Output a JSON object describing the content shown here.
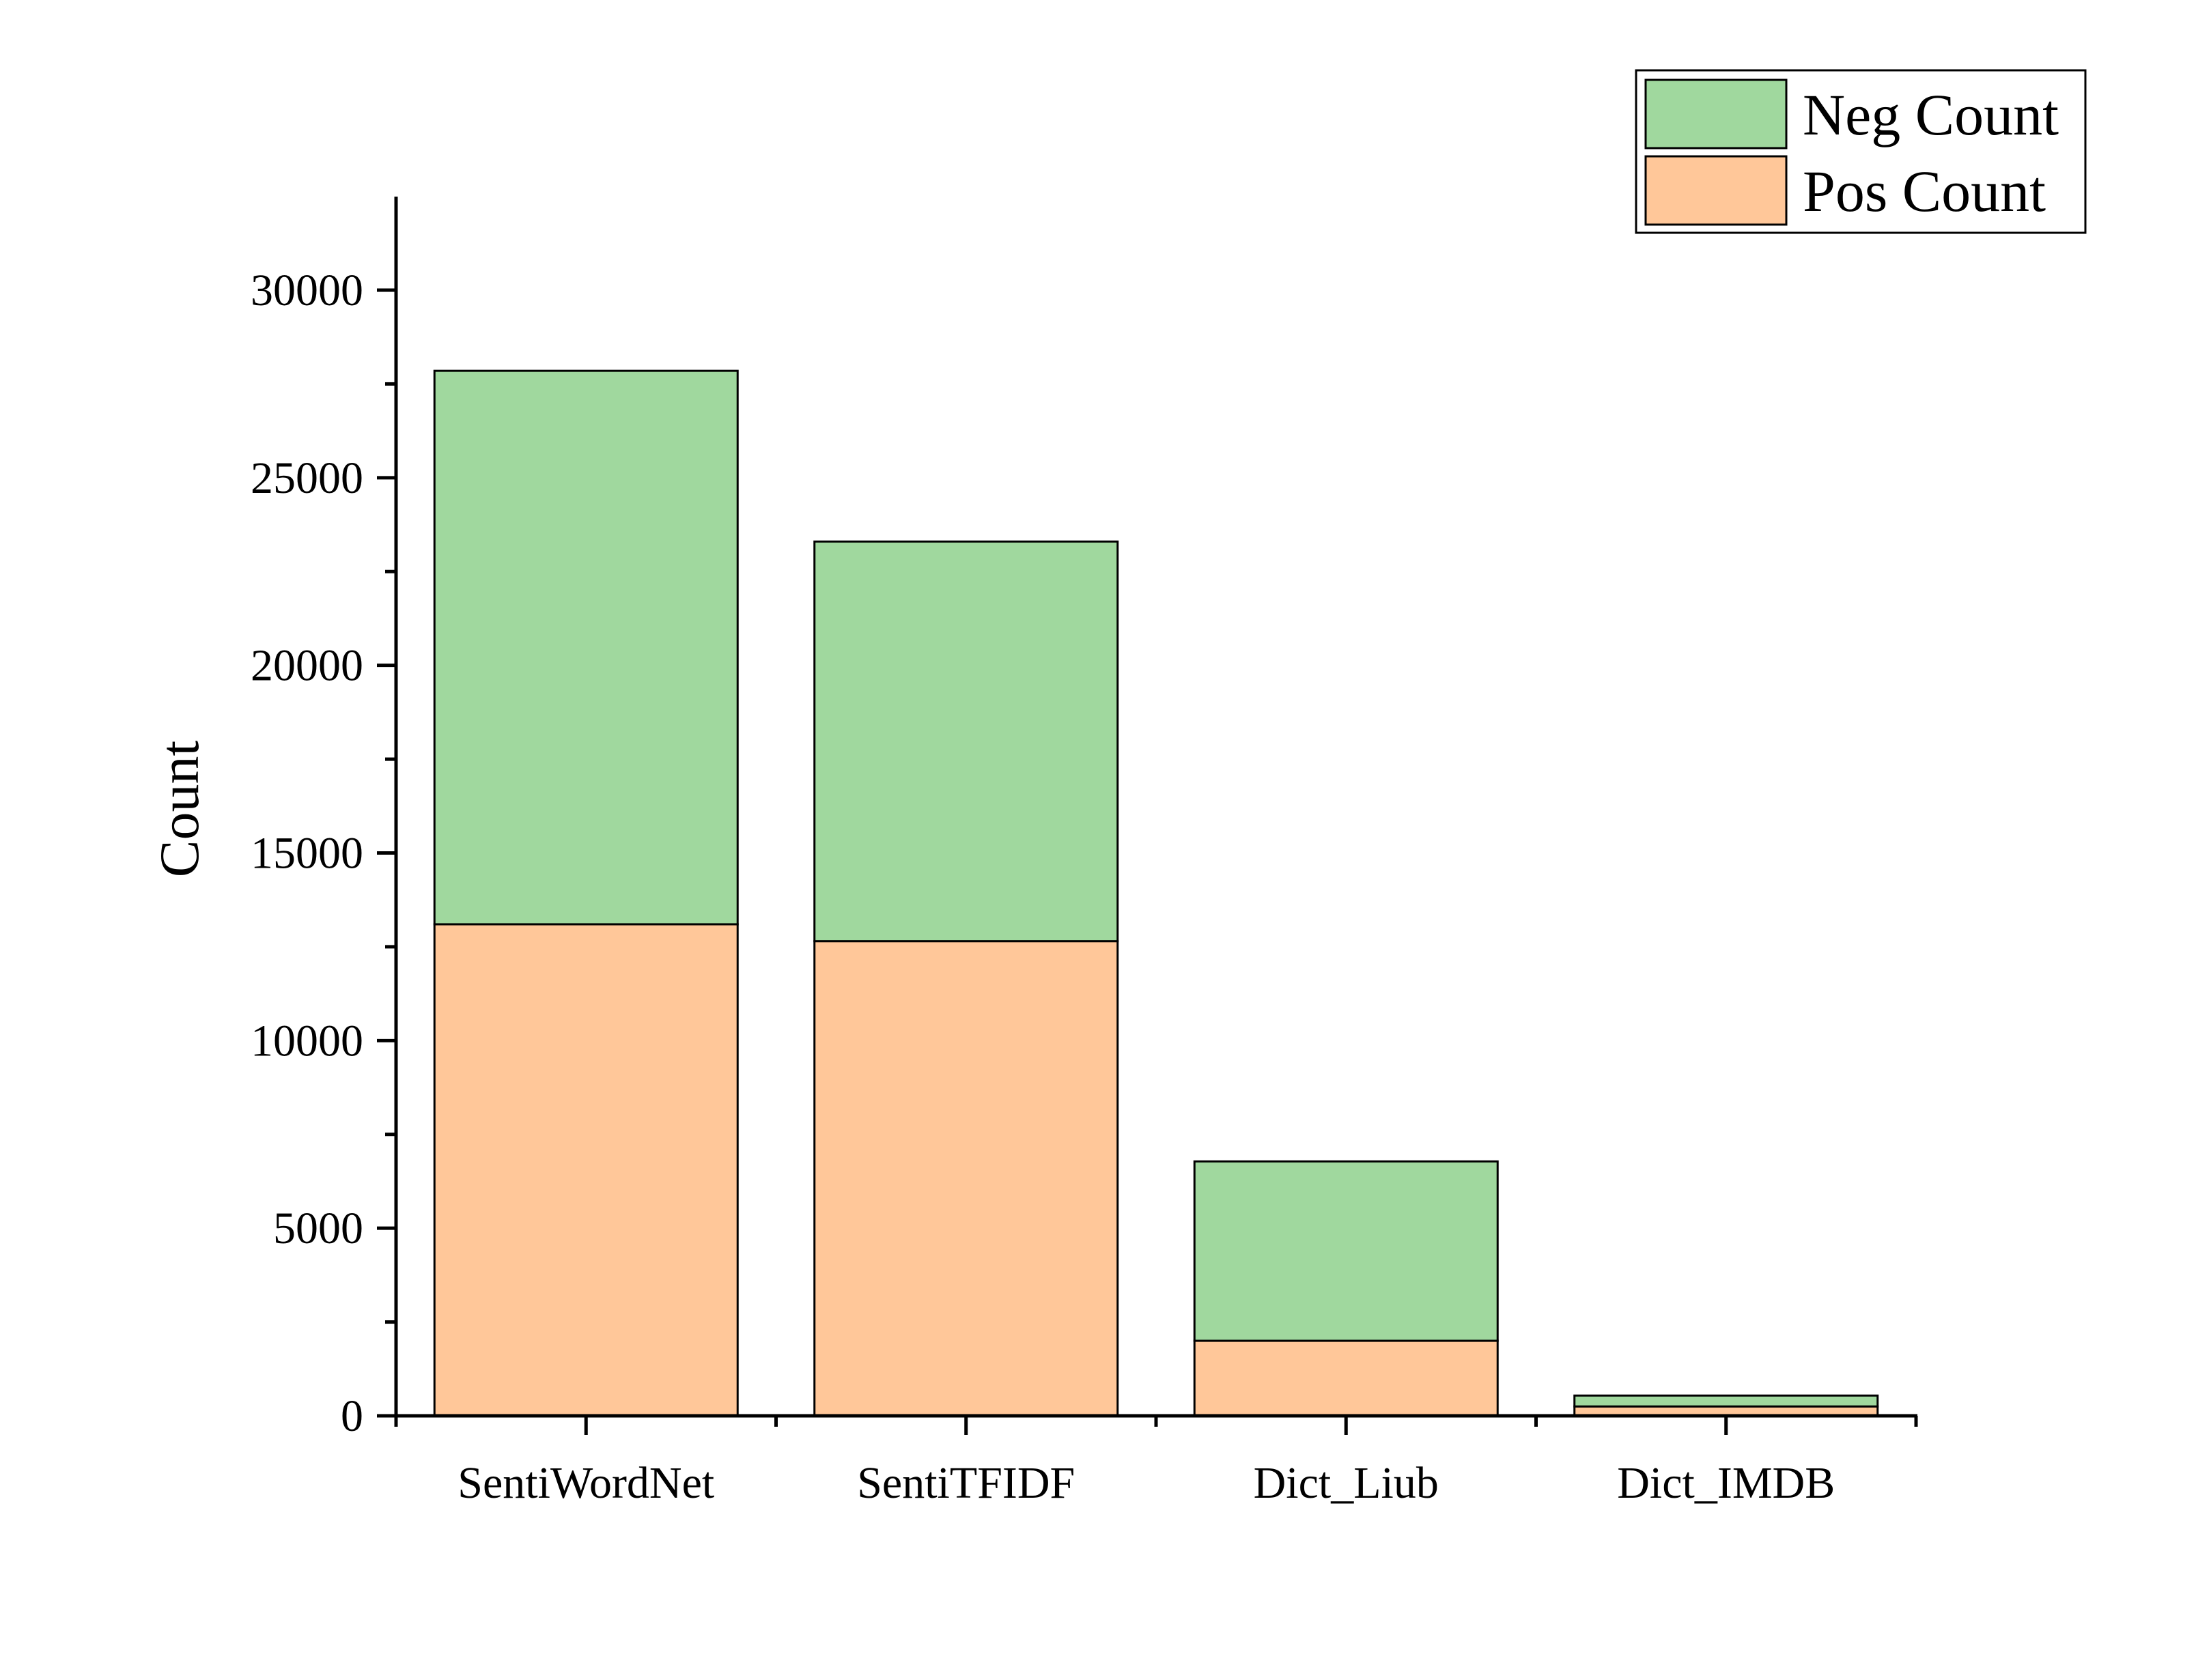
{
  "chart_data": {
    "type": "bar",
    "stacked": true,
    "categories": [
      "SentiWordNet",
      "SentiTFIDF",
      "Dict_Liub",
      "Dict_IMDB"
    ],
    "series": [
      {
        "name": "Pos Count",
        "values": [
          13100,
          12650,
          2000,
          250
        ],
        "color": "#FFC799"
      },
      {
        "name": "Neg Count",
        "values": [
          14750,
          10650,
          4780,
          290
        ],
        "color": "#A0D89E"
      }
    ],
    "ylabel": "Count",
    "ylim": [
      0,
      32500
    ],
    "yticks": [
      0,
      5000,
      10000,
      15000,
      20000,
      25000,
      30000
    ],
    "grid": false,
    "legend_position": "top-right"
  }
}
